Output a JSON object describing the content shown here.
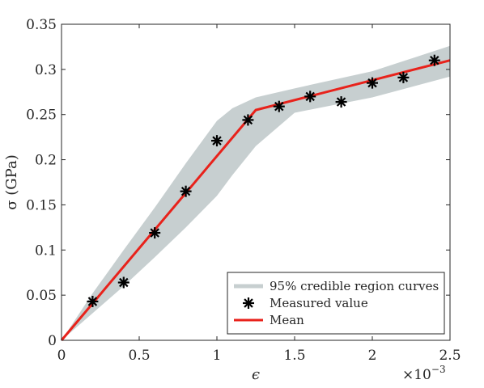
{
  "chart_data": {
    "type": "line",
    "xlabel": "ϵ",
    "ylabel": "σ (GPa)",
    "x_multiplier": "×10",
    "x_multiplier_exponent": "−3",
    "xlim": [
      0,
      2.5
    ],
    "ylim": [
      0,
      0.35
    ],
    "x_ticks": [
      0,
      0.5,
      1,
      1.5,
      2,
      2.5
    ],
    "x_tick_labels": [
      "0",
      "0.5",
      "1",
      "1.5",
      "2",
      "2.5"
    ],
    "y_ticks": [
      0,
      0.05,
      0.1,
      0.15,
      0.2,
      0.25,
      0.3,
      0.35
    ],
    "y_tick_labels": [
      "0",
      "0.05",
      "0.1",
      "0.15",
      "0.2",
      "0.25",
      "0.3",
      "0.35"
    ],
    "grid": false,
    "legend_position": "bottom-right",
    "colors": {
      "band": "#c7cfd0",
      "mean": "#e8221b",
      "marker": "#000000",
      "axis": "#262626"
    },
    "series": [
      {
        "name": "95% credible region curves",
        "kind": "band",
        "x": [
          0,
          0.2,
          0.4,
          0.6,
          0.8,
          1.0,
          1.1,
          1.25,
          1.5,
          2.0,
          2.5
        ],
        "lower": [
          0,
          0.03,
          0.06,
          0.092,
          0.125,
          0.16,
          0.183,
          0.215,
          0.252,
          0.269,
          0.292
        ],
        "upper": [
          0,
          0.052,
          0.1,
          0.147,
          0.196,
          0.243,
          0.257,
          0.269,
          0.279,
          0.298,
          0.326
        ]
      },
      {
        "name": "Measured value",
        "kind": "scatter",
        "x": [
          0.2,
          0.4,
          0.6,
          0.8,
          1.0,
          1.2,
          1.4,
          1.6,
          1.8,
          2.0,
          2.2,
          2.4
        ],
        "y": [
          0.043,
          0.064,
          0.119,
          0.165,
          0.221,
          0.244,
          0.259,
          0.27,
          0.264,
          0.285,
          0.291,
          0.31
        ]
      },
      {
        "name": "Mean",
        "kind": "line",
        "x": [
          0,
          1.25,
          2.5
        ],
        "y": [
          0,
          0.255,
          0.31
        ]
      }
    ]
  }
}
